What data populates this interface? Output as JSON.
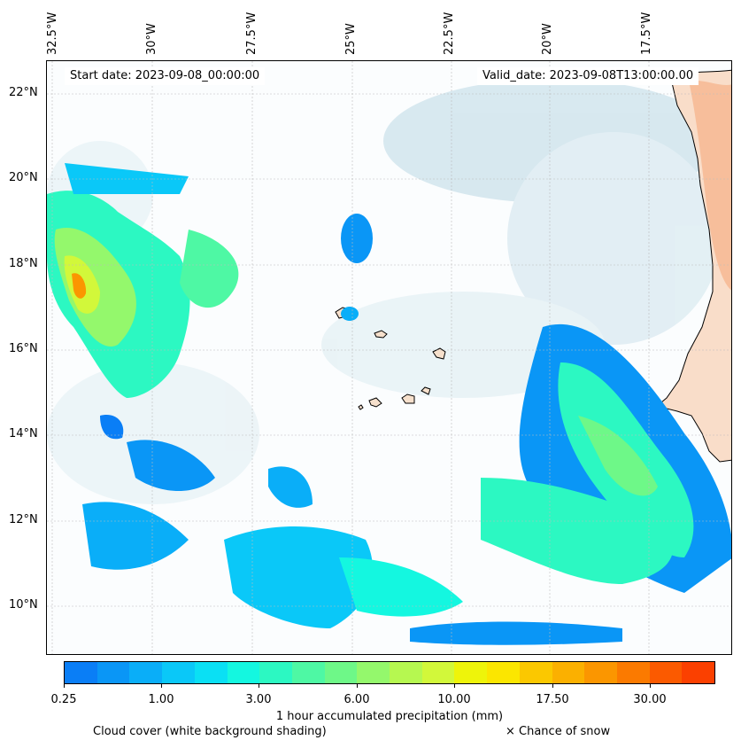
{
  "header": {
    "start_date": "Start date: 2023-09-08_00:00:00",
    "valid_date": "Valid_date: 2023-09-08T13:00:00.00"
  },
  "axes": {
    "longitude_labels": [
      "32.5°W",
      "30°W",
      "27.5°W",
      "25°W",
      "22.5°W",
      "20°W",
      "17.5°W"
    ],
    "latitude_labels": [
      "22°N",
      "20°N",
      "18°N",
      "16°N",
      "14°N",
      "12°N",
      "10°N"
    ]
  },
  "colorbar": {
    "label": "1 hour accumulated precipitation (mm)",
    "tick_labels": [
      "0.25",
      "1.00",
      "3.00",
      "6.00",
      "10.00",
      "17.50",
      "30.00"
    ],
    "colors": [
      "#0a7ef6",
      "#0a96f6",
      "#0aaef8",
      "#0ac8f8",
      "#0ae0f4",
      "#14f7e0",
      "#2cf8c2",
      "#4ef8a4",
      "#6ef888",
      "#94f86c",
      "#b6f850",
      "#d2f83a",
      "#eef40a",
      "#fbe600",
      "#fbc800",
      "#fbb000",
      "#fb9600",
      "#fb7a00",
      "#fb5a00",
      "#fb4000"
    ]
  },
  "legend": {
    "cloud_cover": "Cloud cover (white background shading)",
    "snow": "× Chance of snow"
  },
  "map": {
    "region": "Eastern tropical Atlantic, Cape Verde and West African coast",
    "land_color": "#f6c8a8",
    "cloud_color": "#cfe4ec"
  }
}
